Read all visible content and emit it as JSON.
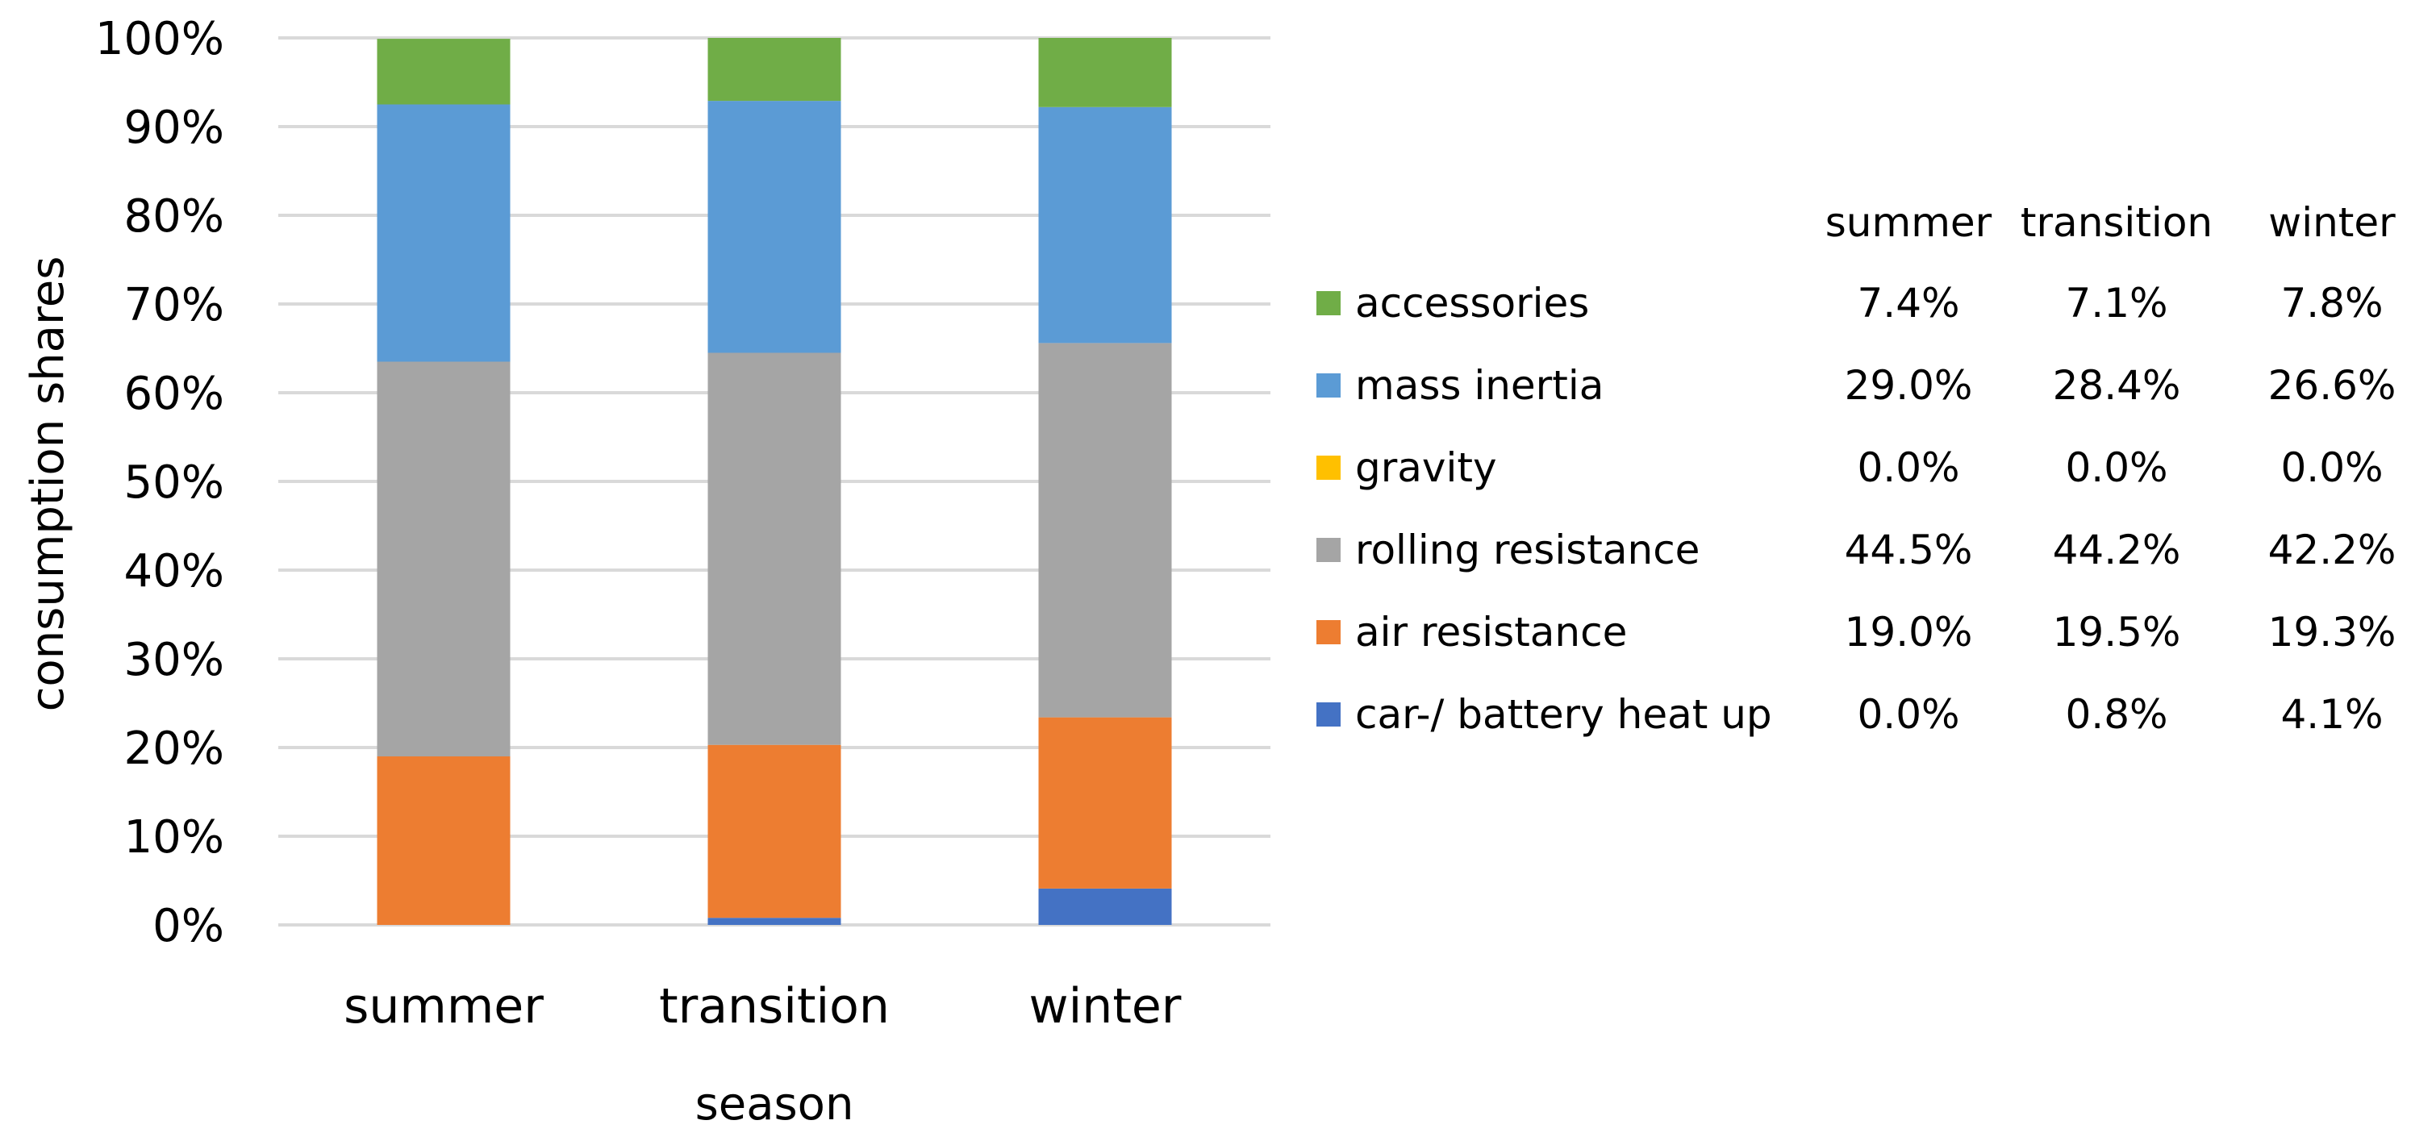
{
  "chart_data": {
    "type": "bar",
    "stacked": true,
    "categories": [
      "summer",
      "transition",
      "winter"
    ],
    "xlabel": "season",
    "ylabel": "consumption shares",
    "ylim": [
      0,
      100
    ],
    "y_tick_labels": [
      "0%",
      "10%",
      "20%",
      "30%",
      "40%",
      "50%",
      "60%",
      "70%",
      "80%",
      "90%",
      "100%"
    ],
    "grid": true,
    "legend_placement": "right",
    "series": [
      {
        "name": "car-/ battery heat up",
        "color": "#4472c4",
        "values": [
          0.0,
          0.8,
          4.1
        ],
        "labels": [
          "0.0%",
          "0.8%",
          "4.1%"
        ]
      },
      {
        "name": "air resistance",
        "color": "#ed7d31",
        "values": [
          19.0,
          19.5,
          19.3
        ],
        "labels": [
          "19.0%",
          "19.5%",
          "19.3%"
        ]
      },
      {
        "name": "rolling resistance",
        "color": "#a5a5a5",
        "values": [
          44.5,
          44.2,
          42.2
        ],
        "labels": [
          "44.5%",
          "44.2%",
          "42.2%"
        ]
      },
      {
        "name": "gravity",
        "color": "#ffc000",
        "values": [
          0.0,
          0.0,
          0.0
        ],
        "labels": [
          "0.0%",
          "0.0%",
          "0.0%"
        ]
      },
      {
        "name": "mass inertia",
        "color": "#5b9bd5",
        "values": [
          29.0,
          28.4,
          26.6
        ],
        "labels": [
          "29.0%",
          "28.4%",
          "26.6%"
        ]
      },
      {
        "name": "accessories",
        "color": "#70ad47",
        "values": [
          7.4,
          7.1,
          7.8
        ],
        "labels": [
          "7.4%",
          "7.1%",
          "7.8%"
        ]
      }
    ],
    "table_headers": [
      "summer",
      "transition",
      "winter"
    ]
  }
}
